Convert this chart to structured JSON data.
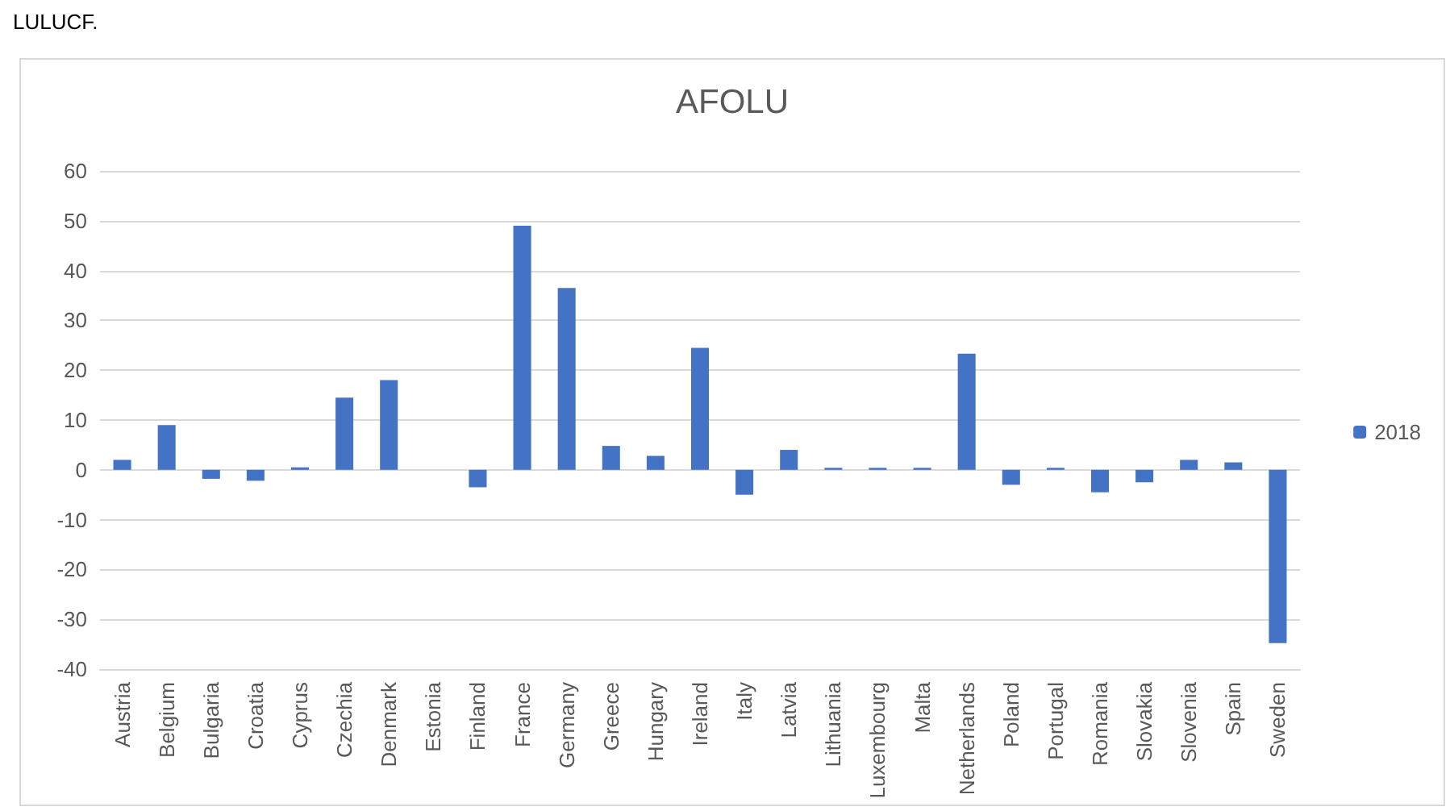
{
  "chart_data": {
    "type": "bar",
    "title": "AFOLU",
    "annotations": [
      "LULUCF."
    ],
    "categories": [
      "Austria",
      "Belgium",
      "Bulgaria",
      "Croatia",
      "Cyprus",
      "Czechia",
      "Denmark",
      "Estonia",
      "Finland",
      "France",
      "Germany",
      "Greece",
      "Hungary",
      "Ireland",
      "Italy",
      "Latvia",
      "Lithuania",
      "Luxembourg",
      "Malta",
      "Netherlands",
      "Poland",
      "Portugal",
      "Romania",
      "Slovakia",
      "Slovenia",
      "Spain",
      "Sweden"
    ],
    "series": [
      {
        "name": "2018",
        "color": "#4472c4",
        "values": [
          2,
          9,
          -1.8,
          -2.2,
          0.5,
          14.5,
          18,
          0,
          -3.5,
          49,
          36.5,
          4.8,
          2.8,
          24.5,
          -5,
          4,
          0.4,
          0.4,
          0.4,
          23.3,
          -3,
          0.4,
          -4.5,
          -2.5,
          2,
          1.5,
          -34.8
        ]
      }
    ],
    "ylim": [
      -40,
      60
    ],
    "yticks": [
      -40,
      -30,
      -20,
      -10,
      0,
      10,
      20,
      30,
      40,
      50,
      60
    ],
    "grid": "y",
    "legend": "right"
  }
}
